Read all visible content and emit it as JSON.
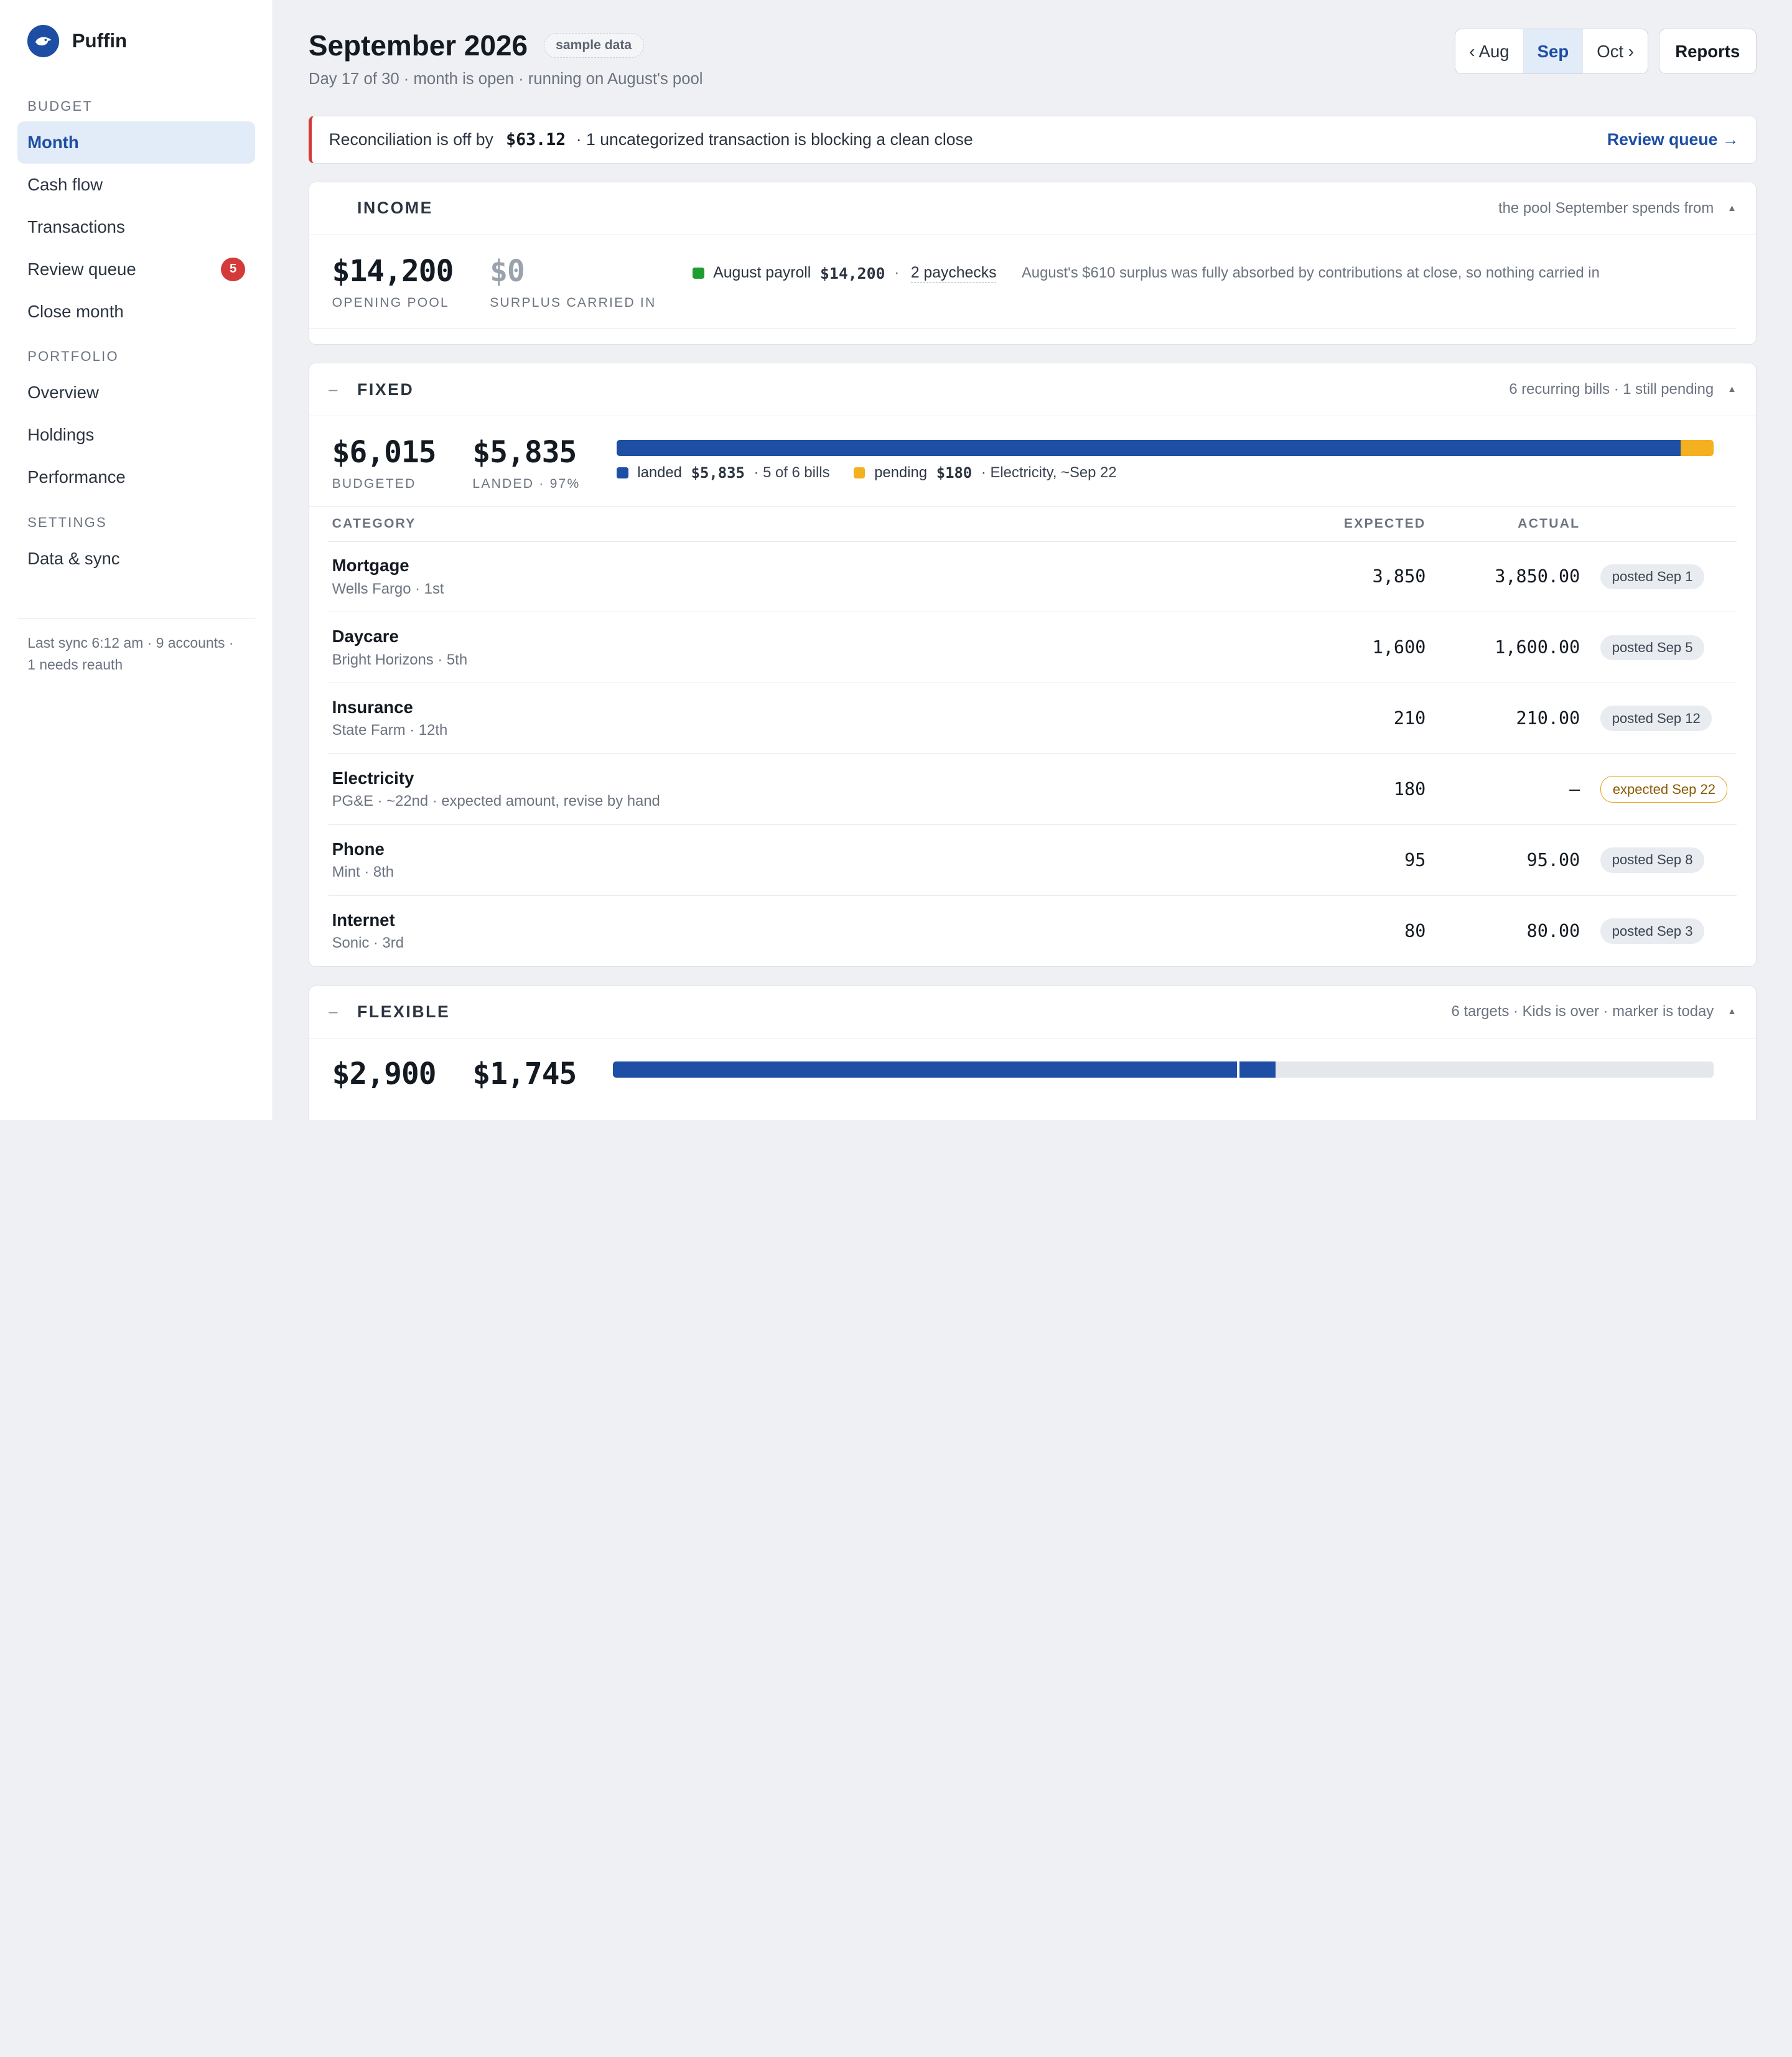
{
  "brand": {
    "name": "Puffin"
  },
  "sidebar": {
    "sections": [
      {
        "label": "BUDGET",
        "items": [
          {
            "label": "Month",
            "active": true
          },
          {
            "label": "Cash flow"
          },
          {
            "label": "Transactions"
          },
          {
            "label": "Review queue",
            "badge": "5"
          },
          {
            "label": "Close month"
          }
        ]
      },
      {
        "label": "PORTFOLIO",
        "items": [
          {
            "label": "Overview"
          },
          {
            "label": "Holdings"
          },
          {
            "label": "Performance"
          }
        ]
      },
      {
        "label": "SETTINGS",
        "items": [
          {
            "label": "Data & sync"
          }
        ]
      }
    ],
    "sync_line1": "Last sync 6:12 am · 9 accounts ·",
    "sync_line2": "1 needs reauth"
  },
  "header": {
    "title": "September 2026",
    "tag": "sample data",
    "subtitle": "Day 17 of 30 · month is open · running on August's pool",
    "prev": "‹ Aug",
    "current": "Sep",
    "next": "Oct ›",
    "reports": "Reports"
  },
  "alert": {
    "prefix": "Reconciliation is off by",
    "amount": "$63.12",
    "text": "· 1 uncategorized transaction is blocking a clean close",
    "link": "Review queue →"
  },
  "income": {
    "title": "INCOME",
    "note": "the pool September spends from",
    "opening_value": "$14,200",
    "opening_label": "OPENING POOL",
    "surplus_value": "$0",
    "surplus_label": "SURPLUS CARRIED IN",
    "payroll_label": "August payroll",
    "payroll_amount": "$14,200",
    "sep": "·",
    "paychecks": "2 paychecks",
    "explain": "August's $610 surplus was fully absorbed by contributions at close, so nothing carried in"
  },
  "fixed": {
    "title": "FIXED",
    "note": "6 recurring bills · 1 still pending",
    "budgeted_value": "$6,015",
    "budgeted_label": "BUDGETED",
    "landed_value": "$5,835",
    "landed_label": "LANDED · 97%",
    "landed_fraction": 0.97,
    "legend_landed": "landed",
    "legend_landed_amt": "$5,835",
    "legend_landed_note": "· 5 of 6 bills",
    "legend_pending": "pending",
    "legend_pending_amt": "$180",
    "legend_pending_note": "· Electricity, ~Sep 22",
    "col_category": "CATEGORY",
    "col_expected": "EXPECTED",
    "col_actual": "ACTUAL",
    "rows": [
      {
        "name": "Mortgage",
        "sub": "Wells Fargo · 1st",
        "expected": "3,850",
        "actual": "3,850.00",
        "status": "posted Sep 1",
        "pending": false
      },
      {
        "name": "Daycare",
        "sub": "Bright Horizons · 5th",
        "expected": "1,600",
        "actual": "1,600.00",
        "status": "posted Sep 5",
        "pending": false
      },
      {
        "name": "Insurance",
        "sub": "State Farm · 12th",
        "expected": "210",
        "actual": "210.00",
        "status": "posted Sep 12",
        "pending": false
      },
      {
        "name": "Electricity",
        "sub": "PG&E · ~22nd · expected amount, revise by hand",
        "expected": "180",
        "actual": "—",
        "status": "expected Sep 22",
        "pending": true
      },
      {
        "name": "Phone",
        "sub": "Mint · 8th",
        "expected": "95",
        "actual": "95.00",
        "status": "posted Sep 8",
        "pending": false
      },
      {
        "name": "Internet",
        "sub": "Sonic · 3rd",
        "expected": "80",
        "actual": "80.00",
        "status": "posted Sep 3",
        "pending": false
      }
    ]
  },
  "flexible": {
    "title": "FLEXIBLE",
    "note": "6 targets · Kids is over · marker is today",
    "budgeted_value": "$2,900",
    "spent_value": "$1,745",
    "spent_fraction": 0.602,
    "today_fraction": 0.567
  },
  "colors": {
    "accent": "#1d4ea3",
    "bar_blue": "#1f4fa5",
    "pending": "#f5b01f",
    "payroll": "#1f9d33",
    "alert": "#d43a3a"
  }
}
